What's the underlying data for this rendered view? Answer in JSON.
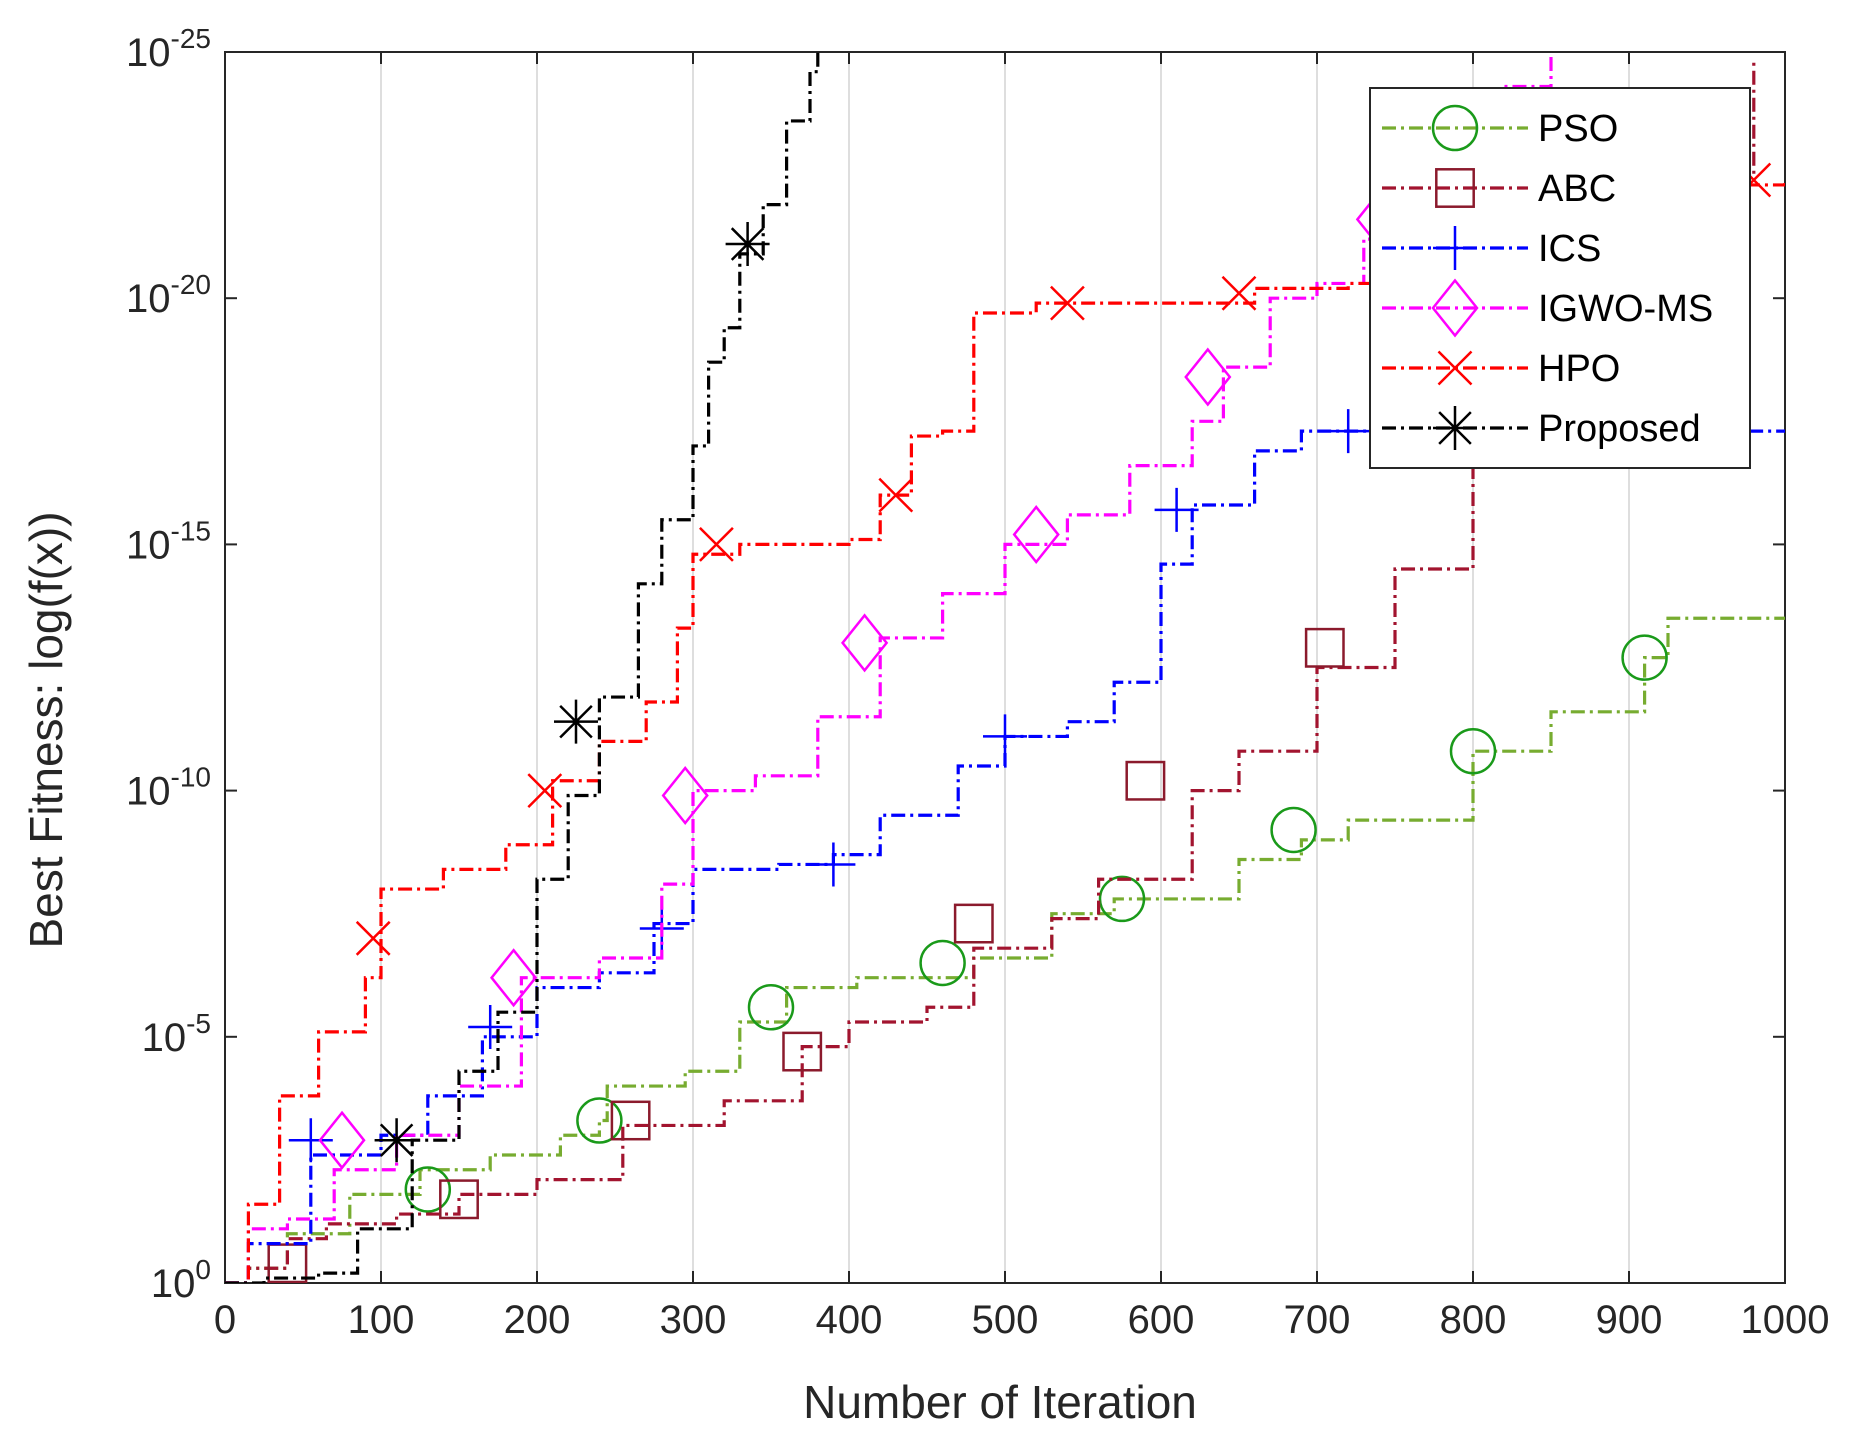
{
  "chart_data": {
    "type": "line",
    "xlabel": "Number of Iteration",
    "ylabel": "Best Fitness: log(f(x))",
    "xlim": [
      0,
      1000
    ],
    "ylim_exponent": [
      -25,
      0
    ],
    "y_scale": "log10",
    "grid": true,
    "legend_position": "top-right",
    "x_ticks": [
      "0",
      "100",
      "200",
      "300",
      "400",
      "500",
      "600",
      "700",
      "800",
      "900",
      "1000"
    ],
    "y_ticks": [
      {
        "base": "10",
        "exp": "0",
        "value": 0
      },
      {
        "base": "10",
        "exp": "-5",
        "value": -5
      },
      {
        "base": "10",
        "exp": "-10",
        "value": -10
      },
      {
        "base": "10",
        "exp": "-15",
        "value": -15
      },
      {
        "base": "10",
        "exp": "-20",
        "value": -20
      },
      {
        "base": "10",
        "exp": "-25",
        "value": -25
      }
    ],
    "series": [
      {
        "name": "PSO",
        "color": "#77ac30",
        "marker_color": "#1a9a1a",
        "marker": "circle",
        "x": [
          0,
          15,
          40,
          80,
          125,
          170,
          215,
          240,
          245,
          295,
          330,
          360,
          405,
          480,
          530,
          570,
          650,
          690,
          720,
          800,
          850,
          910,
          925,
          1000
        ],
        "log10": [
          0,
          -0.3,
          -1.0,
          -1.8,
          -2.3,
          -2.6,
          -3.0,
          -3.3,
          -4.0,
          -4.3,
          -5.3,
          -6.0,
          -6.2,
          -6.6,
          -7.5,
          -7.8,
          -8.6,
          -9.0,
          -9.4,
          -10.8,
          -11.6,
          -12.7,
          -13.5,
          -13.5
        ],
        "markers_x": [
          130,
          240,
          350,
          460,
          575,
          685,
          800,
          910
        ],
        "markers_log10": [
          -1.9,
          -3.3,
          -5.6,
          -6.5,
          -7.8,
          -9.2,
          -10.8,
          -12.7
        ]
      },
      {
        "name": "ABC",
        "color": "#a2142f",
        "marker_color": "#8b1a2c",
        "marker": "square",
        "x": [
          0,
          15,
          40,
          65,
          110,
          150,
          200,
          255,
          320,
          370,
          400,
          450,
          480,
          530,
          560,
          620,
          650,
          700,
          750,
          800,
          830,
          870,
          920,
          940,
          980
        ],
        "log10": [
          0,
          -0.3,
          -0.9,
          -1.2,
          -1.4,
          -1.8,
          -2.1,
          -3.2,
          -3.7,
          -4.8,
          -5.3,
          -5.6,
          -6.8,
          -7.4,
          -8.2,
          -10.0,
          -10.8,
          -12.5,
          -14.5,
          -16.9,
          -17.7,
          -19.6,
          -21.3,
          -22.5,
          -24.8
        ],
        "markers_x": [
          40,
          150,
          260,
          370,
          480,
          590,
          705,
          815,
          925
        ],
        "markers_log10": [
          -0.4,
          -1.7,
          -3.3,
          -4.7,
          -7.3,
          -10.2,
          -12.9,
          -17.2,
          -22.3
        ]
      },
      {
        "name": "ICS",
        "color": "#0000ff",
        "marker_color": "#0000ff",
        "marker": "plus",
        "x": [
          0,
          15,
          55,
          100,
          130,
          165,
          200,
          240,
          275,
          300,
          355,
          390,
          420,
          470,
          500,
          540,
          570,
          600,
          620,
          660,
          690,
          700,
          1000
        ],
        "log10": [
          0,
          -0.8,
          -2.6,
          -3.0,
          -3.8,
          -5.0,
          -6.0,
          -6.3,
          -7.3,
          -8.4,
          -8.5,
          -8.7,
          -9.5,
          -10.5,
          -11.1,
          -11.4,
          -12.2,
          -14.6,
          -15.8,
          -16.9,
          -17.3,
          -17.3,
          -17.3
        ],
        "markers_x": [
          55,
          170,
          280,
          390,
          500,
          610,
          720,
          835,
          945
        ],
        "markers_log10": [
          -2.9,
          -5.2,
          -7.2,
          -8.5,
          -11.1,
          -15.7,
          -17.3,
          -17.3,
          -17.3
        ]
      },
      {
        "name": "IGWO-MS",
        "color": "#ff00ff",
        "marker_color": "#ff00ff",
        "marker": "diamond",
        "x": [
          0,
          15,
          40,
          70,
          110,
          150,
          190,
          240,
          280,
          300,
          340,
          380,
          420,
          460,
          500,
          540,
          580,
          620,
          640,
          670,
          700,
          730,
          760,
          790,
          820,
          850
        ],
        "log10": [
          0,
          -1.1,
          -1.3,
          -2.3,
          -3.0,
          -4.0,
          -6.2,
          -6.6,
          -8.1,
          -10.0,
          -10.3,
          -11.5,
          -13.1,
          -14.0,
          -15.0,
          -15.6,
          -16.6,
          -17.5,
          -18.6,
          -20.0,
          -20.3,
          -21.2,
          -22.0,
          -23.0,
          -24.3,
          -25.0
        ],
        "markers_x": [
          75,
          185,
          295,
          410,
          520,
          630,
          740
        ],
        "markers_log10": [
          -2.9,
          -6.2,
          -9.9,
          -13.0,
          -15.2,
          -18.4,
          -21.6
        ]
      },
      {
        "name": "HPO",
        "color": "#ff0000",
        "marker_color": "#ff0000",
        "marker": "x",
        "x": [
          0,
          15,
          35,
          60,
          90,
          100,
          140,
          180,
          210,
          240,
          270,
          290,
          300,
          330,
          360,
          400,
          420,
          440,
          460,
          480,
          520,
          600,
          660,
          720,
          760,
          800,
          1000
        ],
        "log10": [
          0,
          -1.6,
          -3.8,
          -5.1,
          -6.2,
          -8.0,
          -8.4,
          -8.9,
          -10.2,
          -11.0,
          -11.8,
          -13.3,
          -14.8,
          -15.0,
          -15.0,
          -15.1,
          -16.0,
          -17.2,
          -17.3,
          -19.7,
          -19.9,
          -19.9,
          -20.2,
          -20.3,
          -21.8,
          -22.3,
          -22.4
        ],
        "markers_x": [
          95,
          205,
          315,
          430,
          540,
          650,
          760,
          870,
          980
        ],
        "markers_log10": [
          -7.0,
          -10.0,
          -15.0,
          -16.0,
          -19.9,
          -20.1,
          -22.2,
          -22.4,
          -22.4
        ]
      },
      {
        "name": "Proposed",
        "color": "#000000",
        "marker_color": "#000000",
        "marker": "star",
        "x": [
          0,
          25,
          60,
          85,
          120,
          150,
          175,
          200,
          220,
          240,
          265,
          280,
          300,
          310,
          320,
          330,
          345,
          360,
          375,
          380
        ],
        "log10": [
          0,
          -0.1,
          -0.2,
          -1.1,
          -2.9,
          -4.3,
          -5.5,
          -8.2,
          -9.9,
          -11.9,
          -14.2,
          -15.5,
          -17.0,
          -18.7,
          -19.4,
          -20.9,
          -21.9,
          -23.6,
          -24.6,
          -25.0
        ],
        "markers_x": [
          110,
          225,
          335
        ],
        "markers_log10": [
          -2.9,
          -11.4,
          -21.1
        ]
      }
    ]
  }
}
